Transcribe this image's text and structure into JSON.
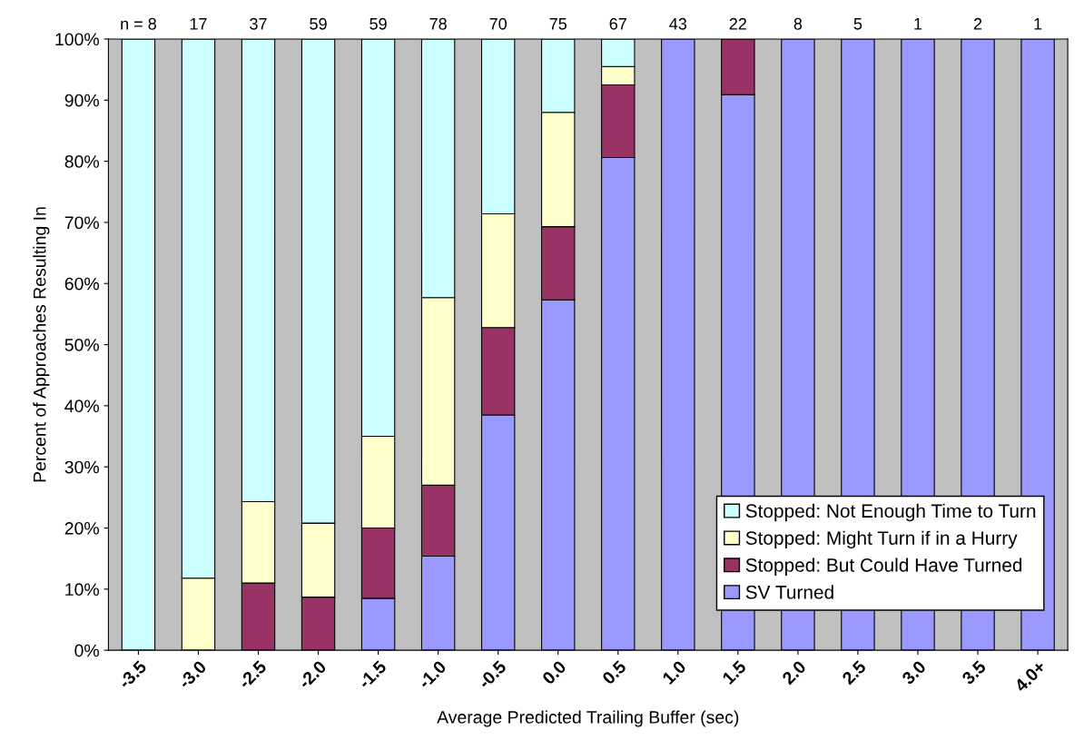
{
  "chart_data": {
    "type": "bar",
    "stacked": true,
    "xlabel": "Average Predicted Trailing Buffer (sec)",
    "ylabel": "Percent of Approaches Resulting In",
    "categories": [
      "-3.5",
      "-3.0",
      "-2.5",
      "-2.0",
      "-1.5",
      "-1.0",
      "-0.5",
      "0.0",
      "0.5",
      "1.0",
      "1.5",
      "2.0",
      "2.5",
      "3.0",
      "3.5",
      "4.0+"
    ],
    "series": [
      {
        "name": "SV Turned",
        "color": "#9999ff",
        "values": [
          0,
          0,
          0,
          0,
          8.5,
          15.4,
          38.5,
          57.3,
          80.6,
          100,
          90.9,
          100,
          100,
          100,
          100,
          100
        ]
      },
      {
        "name": "Stopped: But Could Have Turned",
        "color": "#993366",
        "values": [
          0,
          0,
          11,
          8.7,
          11.5,
          11.6,
          14.3,
          12,
          11.9,
          0,
          9.1,
          0,
          0,
          0,
          0,
          0
        ]
      },
      {
        "name": "Stopped: Might Turn if in a Hurry",
        "color": "#ffffcc",
        "values": [
          0,
          11.8,
          13.3,
          12.1,
          15,
          30.7,
          18.6,
          18.7,
          3,
          0,
          0,
          0,
          0,
          0,
          0,
          0
        ]
      },
      {
        "name": "Stopped: Not Enough Time to Turn",
        "color": "#ccffff",
        "values": [
          100,
          88.2,
          75.7,
          79.2,
          65,
          42.3,
          28.6,
          12,
          4.5,
          0,
          0,
          0,
          0,
          0,
          0,
          0
        ]
      }
    ],
    "ylim": [
      0,
      100
    ],
    "yticks": [
      {
        "value": 0,
        "label": "0%"
      },
      {
        "value": 10,
        "label": "10%"
      },
      {
        "value": 20,
        "label": "20%"
      },
      {
        "value": 30,
        "label": "30%"
      },
      {
        "value": 40,
        "label": "40%"
      },
      {
        "value": 50,
        "label": "50%"
      },
      {
        "value": 60,
        "label": "60%"
      },
      {
        "value": 70,
        "label": "70%"
      },
      {
        "value": 80,
        "label": "80%"
      },
      {
        "value": 90,
        "label": "90%"
      },
      {
        "value": 100,
        "label": "100%"
      }
    ],
    "annotations": [
      "n = 8",
      "17",
      "37",
      "59",
      "59",
      "78",
      "70",
      "75",
      "67",
      "43",
      "22",
      "8",
      "5",
      "1",
      "2",
      "1"
    ],
    "legend": "bottom right",
    "grid": false
  }
}
